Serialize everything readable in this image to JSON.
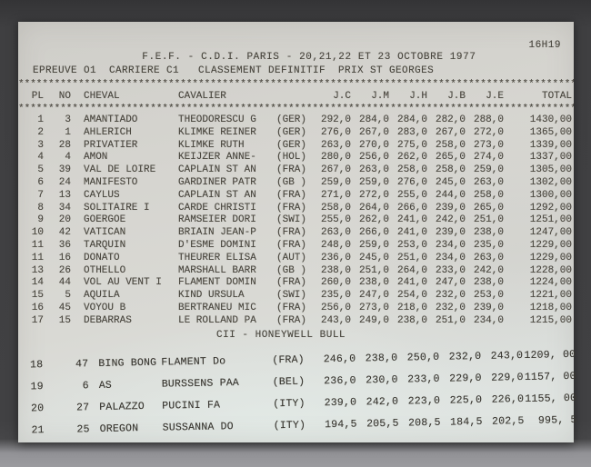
{
  "doc": {
    "title": "F.E.F. - C.D.I. PARIS - 20,21,22 ET 23 OCTOBRE 1977",
    "time": "16H19",
    "event_line": "EPREUVE O1  CARRIERE C1   CLASSEMENT DEFINITIF  PRIX ST GEORGES",
    "stars": "**********************************************************************************************",
    "note": "CII - HONEYWELL BULL",
    "highlight_color": "#8dc45a",
    "columns": {
      "pl": "PL",
      "no": "NO",
      "cheval": "CHEVAL",
      "cavalier": "CAVALIER",
      "jc": "J.C",
      "jm": "J.M",
      "jh": "J.H",
      "jb": "J.B",
      "je": "J.E",
      "total": "TOTAL"
    },
    "rows": [
      {
        "pl": "1",
        "no": "3",
        "cheval": "AMANTIADO",
        "cavalier": "THEODORESCU G",
        "nat": "(GER)",
        "jc": "292,0",
        "jm": "284,0",
        "jh": "284,0",
        "jb": "282,0",
        "je": "288,0",
        "total": "1430,00"
      },
      {
        "pl": "2",
        "no": "1",
        "cheval": "AHLERICH",
        "cavalier": "KLIMKE REINER",
        "nat": "(GER)",
        "jc": "276,0",
        "jm": "267,0",
        "jh": "283,0",
        "jb": "267,0",
        "je": "272,0",
        "total": "1365,00"
      },
      {
        "pl": "3",
        "no": "28",
        "cheval": "PRIVATIER",
        "cavalier": "KLIMKE RUTH",
        "nat": "(GER)",
        "jc": "263,0",
        "jm": "270,0",
        "jh": "275,0",
        "jb": "258,0",
        "je": "273,0",
        "total": "1339,00"
      },
      {
        "pl": "4",
        "no": "4",
        "cheval": "AMON",
        "cavalier": "KEIJZER ANNE-",
        "nat": "(HOL)",
        "jc": "280,0",
        "jm": "256,0",
        "jh": "262,0",
        "jb": "265,0",
        "je": "274,0",
        "total": "1337,00"
      },
      {
        "pl": "5",
        "no": "39",
        "cheval": "VAL DE LOIRE",
        "cavalier": "CAPLAIN ST AN",
        "nat": "(FRA)",
        "jc": "267,0",
        "jm": "263,0",
        "jh": "258,0",
        "jb": "258,0",
        "je": "259,0",
        "total": "1305,00"
      },
      {
        "pl": "6",
        "no": "24",
        "cheval": "MANIFESTO",
        "cavalier": "GARDINER PATR",
        "nat": "(GB )",
        "jc": "259,0",
        "jm": "259,0",
        "jh": "276,0",
        "jb": "245,0",
        "je": "263,0",
        "total": "1302,00",
        "highlight": true
      },
      {
        "pl": "7",
        "no": "13",
        "cheval": "CAYLUS",
        "cavalier": "CAPLAIN ST AN",
        "nat": "(FRA)",
        "jc": "271,0",
        "jm": "272,0",
        "jh": "255,0",
        "jb": "244,0",
        "je": "258,0",
        "total": "1300,00"
      },
      {
        "pl": "8",
        "no": "34",
        "cheval": "SOLITAIRE I",
        "cavalier": "CARDE CHRISTI",
        "nat": "(FRA)",
        "jc": "258,0",
        "jm": "264,0",
        "jh": "266,0",
        "jb": "239,0",
        "je": "265,0",
        "total": "1292,00"
      },
      {
        "pl": "9",
        "no": "20",
        "cheval": "GOERGOE",
        "cavalier": "RAMSEIER DORI",
        "nat": "(SWI)",
        "jc": "255,0",
        "jm": "262,0",
        "jh": "241,0",
        "jb": "242,0",
        "je": "251,0",
        "total": "1251,00"
      },
      {
        "pl": "10",
        "no": "42",
        "cheval": "VATICAN",
        "cavalier": "BRIAIN JEAN-P",
        "nat": "(FRA)",
        "jc": "263,0",
        "jm": "266,0",
        "jh": "241,0",
        "jb": "239,0",
        "je": "238,0",
        "total": "1247,00"
      },
      {
        "pl": "11",
        "no": "36",
        "cheval": "TARQUIN",
        "cavalier": "D'ESME DOMINI",
        "nat": "(FRA)",
        "jc": "248,0",
        "jm": "259,0",
        "jh": "253,0",
        "jb": "234,0",
        "je": "235,0",
        "total": "1229,00"
      },
      {
        "pl": "11",
        "no": "16",
        "cheval": "DONATO",
        "cavalier": "THEURER ELISA",
        "nat": "(AUT)",
        "jc": "236,0",
        "jm": "245,0",
        "jh": "251,0",
        "jb": "234,0",
        "je": "263,0",
        "total": "1229,00"
      },
      {
        "pl": "13",
        "no": "26",
        "cheval": "OTHELLO",
        "cavalier": "MARSHALL BARR",
        "nat": "(GB )",
        "jc": "238,0",
        "jm": "251,0",
        "jh": "264,0",
        "jb": "233,0",
        "je": "242,0",
        "total": "1228,00"
      },
      {
        "pl": "14",
        "no": "44",
        "cheval": "VOL AU VENT I",
        "cavalier": "FLAMENT DOMIN",
        "nat": "(FRA)",
        "jc": "260,0",
        "jm": "238,0",
        "jh": "241,0",
        "jb": "247,0",
        "je": "238,0",
        "total": "1224,00"
      },
      {
        "pl": "15",
        "no": "5",
        "cheval": "AQUILA",
        "cavalier": "KIND URSULA",
        "nat": "(SWI)",
        "jc": "235,0",
        "jm": "247,0",
        "jh": "254,0",
        "jb": "232,0",
        "je": "253,0",
        "total": "1221,00"
      },
      {
        "pl": "16",
        "no": "45",
        "cheval": "VOYOU B",
        "cavalier": "BERTRANEU MIC",
        "nat": "(FRA)",
        "jc": "256,0",
        "jm": "273,0",
        "jh": "218,0",
        "jb": "232,0",
        "je": "239,0",
        "total": "1218,00"
      },
      {
        "pl": "17",
        "no": "15",
        "cheval": "DEBARRAS",
        "cavalier": "LE ROLLAND PA",
        "nat": "(FRA)",
        "jc": "243,0",
        "jm": "249,0",
        "jh": "238,0",
        "jb": "251,0",
        "je": "234,0",
        "total": "1215,00"
      }
    ],
    "bottom_rows": [
      {
        "pl": "18",
        "no": "47",
        "cheval": "BING BONG",
        "cavalier": "FLAMENT Do",
        "nat": "(FRA)",
        "jc": "246,0",
        "jm": "238,0",
        "jh": "250,0",
        "jb": "232,0",
        "je": "243,0",
        "total": "1209, 00"
      },
      {
        "pl": "19",
        "no": "6",
        "cheval": "AS",
        "cavalier": "BURSSENS PAA",
        "nat": "(BEL)",
        "jc": "236,0",
        "jm": "230,0",
        "jh": "233,0",
        "jb": "229,0",
        "je": "229,0",
        "total": "1157, 00"
      },
      {
        "pl": "20",
        "no": "27",
        "cheval": "PALAZZO",
        "cavalier": "PUCINI FA",
        "nat": "(ITY)",
        "jc": "239,0",
        "jm": "242,0",
        "jh": "223,0",
        "jb": "225,0",
        "je": "226,0",
        "total": "1155, 00"
      },
      {
        "pl": "21",
        "no": "25",
        "cheval": "OREGON",
        "cavalier": "SUSSANNA DO",
        "nat": "(ITY)",
        "jc": "194,5",
        "jm": "205,5",
        "jh": "208,5",
        "jb": "184,5",
        "je": "202,5",
        "total": "995, 5"
      }
    ]
  }
}
